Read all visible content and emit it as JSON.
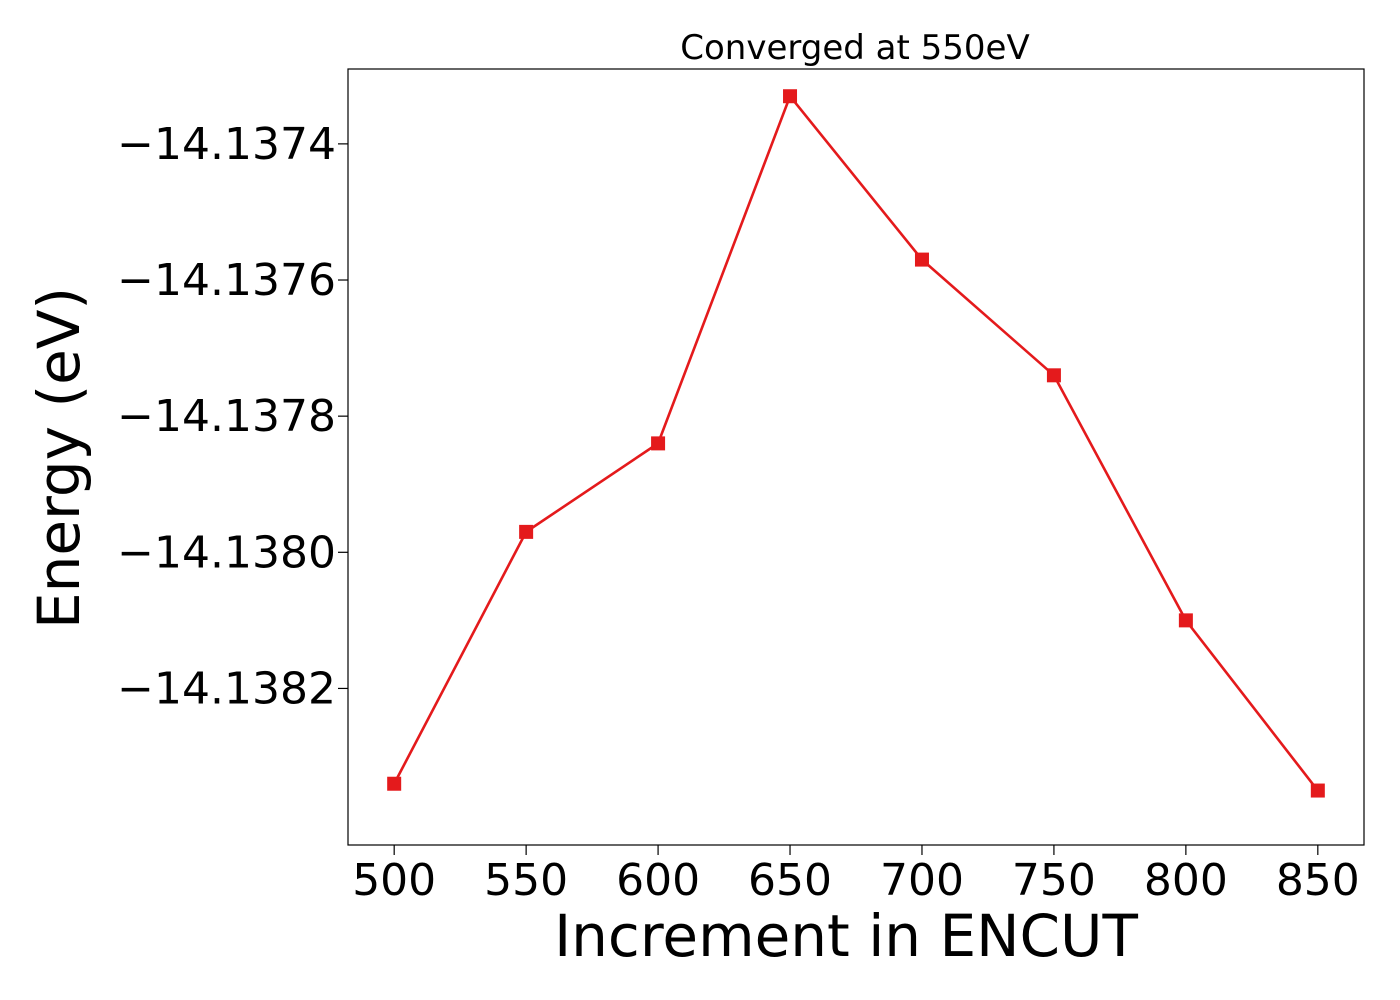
{
  "chart_data": {
    "type": "line",
    "title": "Converged at 550eV",
    "xlabel": "Increment in ENCUT",
    "ylabel": "Energy (eV)",
    "x": [
      500,
      550,
      600,
      650,
      700,
      750,
      800,
      850
    ],
    "xticks": [
      500,
      550,
      600,
      650,
      700,
      750,
      800,
      850
    ],
    "xlim": [
      482.5,
      867.5
    ],
    "yticks": [
      -14.1382,
      -14.138,
      -14.1378,
      -14.1376,
      -14.1374
    ],
    "ytick_labels": [
      "−14.1382",
      "−14.1380",
      "−14.1378",
      "−14.1376",
      "−14.1374"
    ],
    "ylim": [
      -14.13843,
      -14.13729
    ],
    "series": [
      {
        "values": [
          -14.13834,
          -14.13797,
          -14.13784,
          -14.13733,
          -14.13757,
          -14.13774,
          -14.1381,
          -14.13835
        ],
        "color": "#e41a1c",
        "marker": "square"
      }
    ],
    "grid": false,
    "legend": "none"
  }
}
